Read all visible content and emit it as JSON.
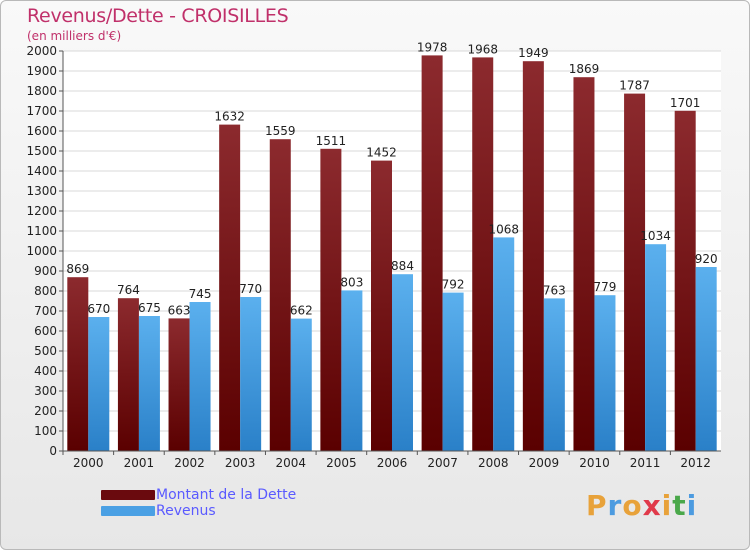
{
  "header": {
    "title": "Revenus/Dette - CROISILLES",
    "subtitle": "(en milliers d'€)"
  },
  "colors": {
    "dette": "#7a1a1e",
    "revenus": "#4aa0e4"
  },
  "chart_data": {
    "type": "bar",
    "title": "Revenus/Dette - CROISILLES",
    "ylabel": "(en milliers d'€)",
    "categories": [
      "2000",
      "2001",
      "2002",
      "2003",
      "2004",
      "2005",
      "2006",
      "2007",
      "2008",
      "2009",
      "2010",
      "2011",
      "2012"
    ],
    "series": [
      {
        "name": "Montant de la Dette",
        "values": [
          869,
          764,
          663,
          1632,
          1559,
          1511,
          1452,
          1978,
          1968,
          1949,
          1869,
          1787,
          1701
        ]
      },
      {
        "name": "Revenus",
        "values": [
          670,
          675,
          745,
          770,
          662,
          803,
          884,
          792,
          1068,
          763,
          779,
          1034,
          920
        ]
      }
    ],
    "ylim": [
      0,
      2000
    ],
    "yticks": [
      0,
      100,
      200,
      300,
      400,
      500,
      600,
      700,
      800,
      900,
      1000,
      1100,
      1200,
      1300,
      1400,
      1500,
      1600,
      1700,
      1800,
      1900,
      2000
    ],
    "grid": true,
    "legend": "bottom-left"
  },
  "legend": {
    "dette_label": "Montant de la Dette",
    "revenus_label": "Revenus"
  },
  "logo": {
    "text": "Proxiti"
  }
}
